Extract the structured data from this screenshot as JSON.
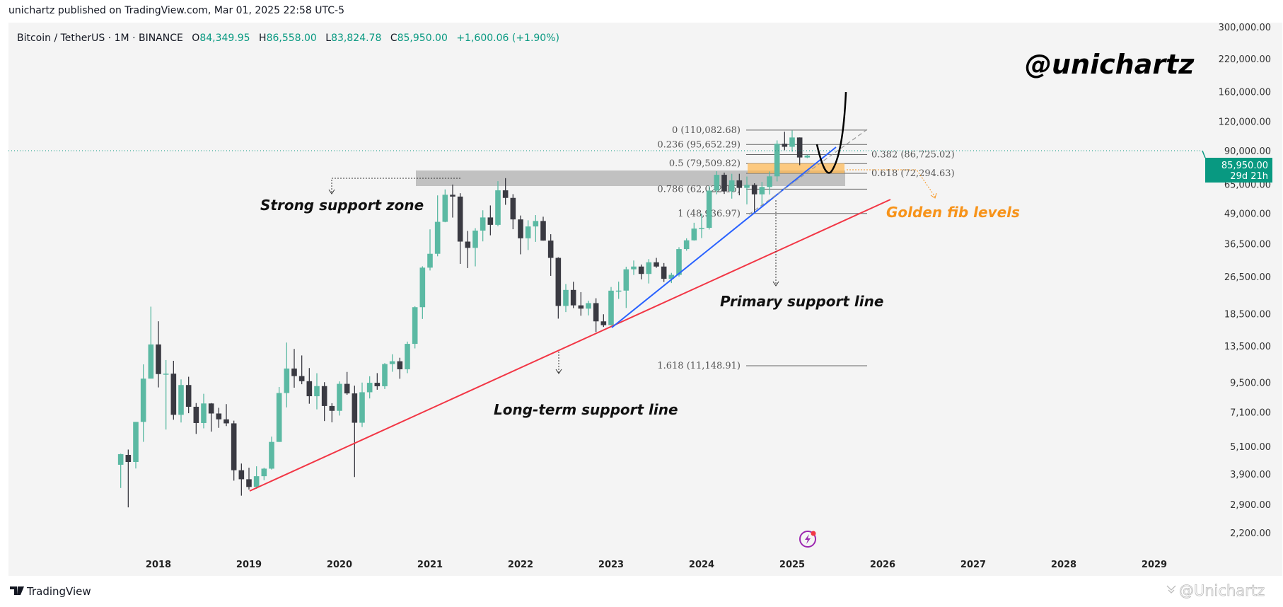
{
  "header": {
    "published": "unichartz published on TradingView.com, Mar 01, 2025 22:58 UTC-5",
    "symbol": "Bitcoin / TetherUS · 1M · BINANCE",
    "o_label": "O",
    "o_value": "84,349.95",
    "h_label": "H",
    "h_value": "86,558.00",
    "l_label": "L",
    "l_value": "83,824.78",
    "c_label": "C",
    "c_value": "85,950.00",
    "change": "+1,600.06 (+1.90%)"
  },
  "footer": {
    "brand": "TradingView",
    "watermark": "@Unichartz"
  },
  "colors": {
    "up": "#5bb9a3",
    "down": "#3a3a42",
    "accent_green": "#089981",
    "long_term_line": "#f23645",
    "primary_line": "#2962ff",
    "golden_zone": "#ffb74d",
    "support_zone": "#9e9e9e",
    "annotation_orange": "#f7931a"
  },
  "price_label": {
    "price": "85,950.00",
    "countdown": "29d 21h"
  },
  "chart_data": {
    "type": "candlestick",
    "title": "",
    "y_scale": "log",
    "ylim": [
      2000,
      320000
    ],
    "xlim": [
      "2017-08",
      "2029-06"
    ],
    "grid": false,
    "y_ticks": [
      "300,000.00",
      "220,000.00",
      "160,000.00",
      "120,000.00",
      "90,000.00",
      "65,000.00",
      "49,000.00",
      "36,500.00",
      "26,500.00",
      "18,500.00",
      "13,500.00",
      "9,500.00",
      "7,100.00",
      "5,100.00",
      "3,900.00",
      "2,900.00",
      "2,200.00"
    ],
    "y_tick_values": [
      300000,
      220000,
      160000,
      120000,
      90000,
      65000,
      49000,
      36500,
      26500,
      18500,
      13500,
      9500,
      7100,
      5100,
      3900,
      2900,
      2200
    ],
    "x_ticks": [
      "2018",
      "2019",
      "2020",
      "2021",
      "2022",
      "2023",
      "2024",
      "2025",
      "2026",
      "2027",
      "2028",
      "2029"
    ],
    "start_month": "2017-08",
    "ohlc": [
      [
        4261,
        4745,
        3400,
        4724
      ],
      [
        4689,
        4939,
        2817,
        4378
      ],
      [
        4378,
        6447,
        4110,
        6463
      ],
      [
        6463,
        11300,
        5325,
        9838
      ],
      [
        9838,
        19798,
        10700,
        13716
      ],
      [
        13716,
        17176,
        9035,
        10285
      ],
      [
        10285,
        11786,
        6000,
        10326
      ],
      [
        10326,
        11700,
        6600,
        6923
      ],
      [
        6923,
        9765,
        6425,
        9246
      ],
      [
        9246,
        10020,
        7032,
        7485
      ],
      [
        7485,
        7760,
        5750,
        6391
      ],
      [
        6391,
        8491,
        6070,
        7730
      ],
      [
        7730,
        7760,
        5880,
        7012
      ],
      [
        7012,
        7410,
        6100,
        6626
      ],
      [
        6626,
        7680,
        6205,
        6371
      ],
      [
        6371,
        6540,
        3652,
        4041
      ],
      [
        4041,
        4312,
        3156,
        3702
      ],
      [
        3702,
        4140,
        3349,
        3434
      ],
      [
        3434,
        4198,
        3373,
        3813
      ],
      [
        3813,
        4140,
        3670,
        4103
      ],
      [
        4103,
        5600,
        4067,
        5320
      ],
      [
        5320,
        9074,
        5320,
        8555
      ],
      [
        8555,
        13970,
        7440,
        10855
      ],
      [
        10855,
        13130,
        9010,
        10085
      ],
      [
        10085,
        12325,
        9320,
        9597
      ],
      [
        9597,
        10905,
        7710,
        8294
      ],
      [
        8294,
        10370,
        7300,
        9150
      ],
      [
        9150,
        9505,
        6515,
        7541
      ],
      [
        7541,
        7750,
        6435,
        7195
      ],
      [
        7195,
        9578,
        6871,
        9352
      ],
      [
        9352,
        10500,
        8410,
        8523
      ],
      [
        8523,
        9188,
        3782,
        6410
      ],
      [
        6410,
        9468,
        6150,
        8620
      ],
      [
        8620,
        10067,
        8117,
        9448
      ],
      [
        9448,
        10380,
        8833,
        9138
      ],
      [
        9138,
        11444,
        8893,
        11335
      ],
      [
        11335,
        12468,
        10518,
        11649
      ],
      [
        11649,
        12050,
        9825,
        10776
      ],
      [
        10776,
        14100,
        10374,
        13791
      ],
      [
        13791,
        19863,
        13195,
        19695
      ],
      [
        19695,
        29300,
        17572,
        28923
      ],
      [
        28923,
        41950,
        28130,
        33092
      ],
      [
        33092,
        58352,
        32296,
        45135
      ],
      [
        45135,
        61844,
        44950,
        58740
      ],
      [
        58740,
        64854,
        47044,
        57694
      ],
      [
        57694,
        59600,
        30000,
        37253
      ],
      [
        37253,
        41330,
        28805,
        35045
      ],
      [
        35045,
        42448,
        29278,
        41461
      ],
      [
        41461,
        50500,
        37332,
        47100
      ],
      [
        47100,
        52920,
        39600,
        43824
      ],
      [
        43824,
        67000,
        43283,
        61299
      ],
      [
        61299,
        69000,
        53256,
        56950
      ],
      [
        56950,
        59053,
        42000,
        46216
      ],
      [
        46216,
        47990,
        32917,
        38466
      ],
      [
        38466,
        45821,
        34322,
        43160
      ],
      [
        43160,
        48190,
        37155,
        45510
      ],
      [
        45510,
        47444,
        37578,
        37630
      ],
      [
        37630,
        40023,
        26700,
        31801
      ],
      [
        31801,
        31986,
        17622,
        19942
      ],
      [
        19942,
        24668,
        18782,
        23293
      ],
      [
        23293,
        25211,
        19520,
        20050
      ],
      [
        20050,
        22800,
        18125,
        19423
      ],
      [
        19423,
        20988,
        18190,
        20490
      ],
      [
        20490,
        21480,
        15476,
        17164
      ],
      [
        17164,
        18387,
        16256,
        16542
      ],
      [
        16542,
        23960,
        16499,
        23125
      ],
      [
        23125,
        25250,
        21351,
        23141
      ],
      [
        23141,
        29184,
        19549,
        28465
      ],
      [
        28465,
        31000,
        26942,
        29233
      ],
      [
        29233,
        29820,
        25811,
        27210
      ],
      [
        27210,
        31431,
        24800,
        30472
      ],
      [
        30472,
        31804,
        28861,
        29232
      ],
      [
        29232,
        30244,
        25166,
        25941
      ],
      [
        25941,
        27488,
        24901,
        26962
      ],
      [
        26962,
        35280,
        26538,
        34640
      ],
      [
        34640,
        38450,
        34097,
        37723
      ],
      [
        37723,
        44729,
        37615,
        42284
      ],
      [
        42284,
        48969,
        38555,
        42580
      ],
      [
        42580,
        63913,
        41884,
        61130
      ],
      [
        61130,
        73777,
        59005,
        71280
      ],
      [
        71280,
        72797,
        59191,
        60672
      ],
      [
        60672,
        71979,
        56552,
        67540
      ],
      [
        67540,
        71997,
        58402,
        62772
      ],
      [
        62772,
        70079,
        53485,
        64628
      ],
      [
        64628,
        65660,
        49000,
        58974
      ],
      [
        58974,
        66498,
        52550,
        63328
      ],
      [
        63328,
        73620,
        58895,
        70215
      ],
      [
        70215,
        99588,
        66835,
        96407
      ],
      [
        96407,
        108353,
        90500,
        93576
      ],
      [
        93576,
        109588,
        89256,
        102429
      ],
      [
        102429,
        102500,
        78258,
        84350
      ],
      [
        84349.95,
        86558,
        83824.78,
        85950
      ]
    ],
    "fib_levels": [
      {
        "label": "0 (110,082.68)",
        "price": 110082.68
      },
      {
        "label": "0.236 (95,652.29)",
        "price": 95652.29
      },
      {
        "label": "0.382 (86,725.02)",
        "price": 86725.02
      },
      {
        "label": "0.5 (79,509.82)",
        "price": 79509.82
      },
      {
        "label": "0.618 (72,294.63)",
        "price": 72294.63
      },
      {
        "label": "0.786 (62,022.15)",
        "price": 62022.15
      },
      {
        "label": "1 (48,936.97)",
        "price": 48936.97
      },
      {
        "label": "1.618 (11,148.91)",
        "price": 11148.91
      }
    ],
    "annotations": {
      "strong_support": "Strong support zone",
      "primary_support": "Primary support line",
      "long_term_support": "Long-term support line",
      "golden_fib": "Golden fib levels",
      "handle": "@unichartz"
    },
    "current_price": 85950
  }
}
